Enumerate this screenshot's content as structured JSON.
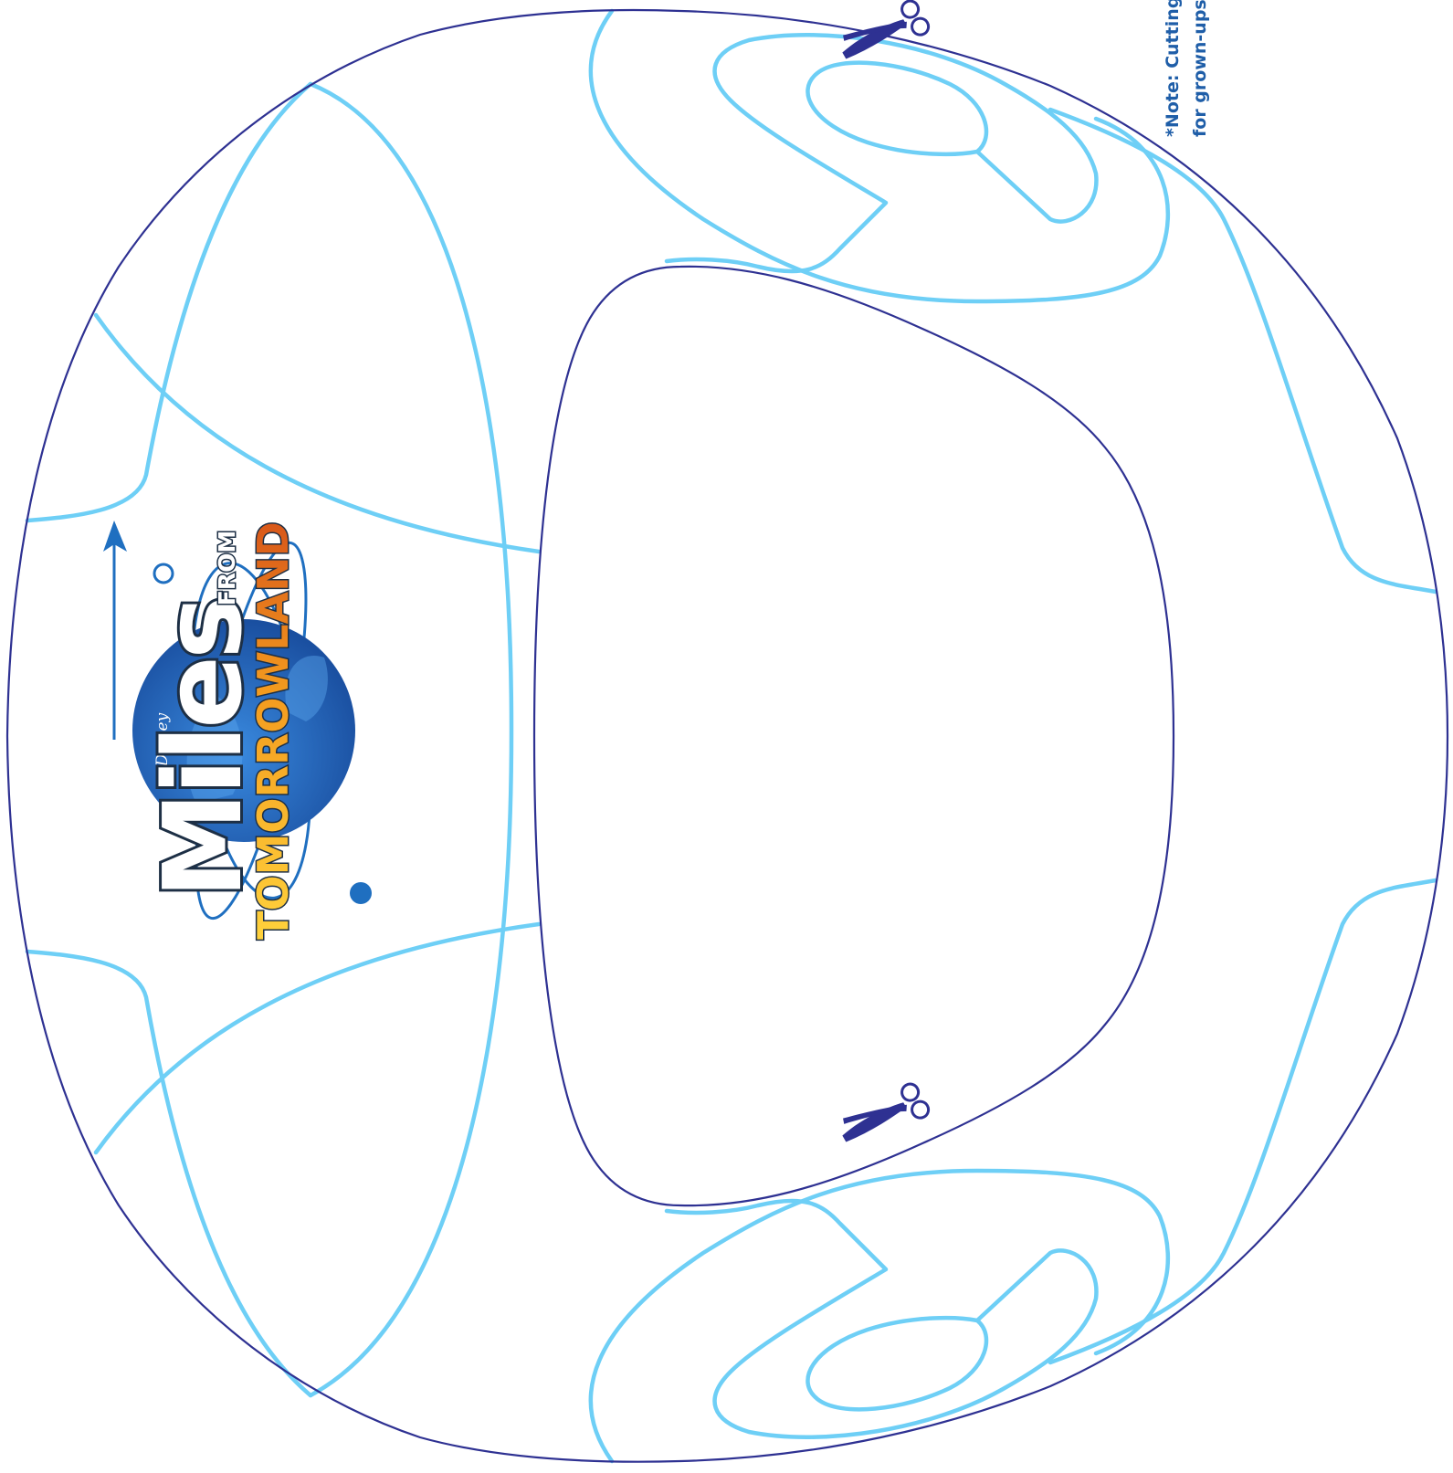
{
  "note": {
    "line1": "*Note: Cutting",
    "line2": "for grown-ups"
  },
  "logo": {
    "brand": "Disney",
    "title": "Miles",
    "from": "FROM",
    "tomorrowland": "TOMORROWLAND"
  },
  "icons": {
    "scissors_top": "scissors-icon",
    "scissors_bottom": "scissors-icon",
    "planet": "planet-icon"
  },
  "colors": {
    "outline": "#2e3192",
    "decoration": "#6ecff6",
    "logo_blue": "#1f6fc0",
    "logo_orange": "#f39a1e",
    "note_text": "#1f5ea8"
  }
}
